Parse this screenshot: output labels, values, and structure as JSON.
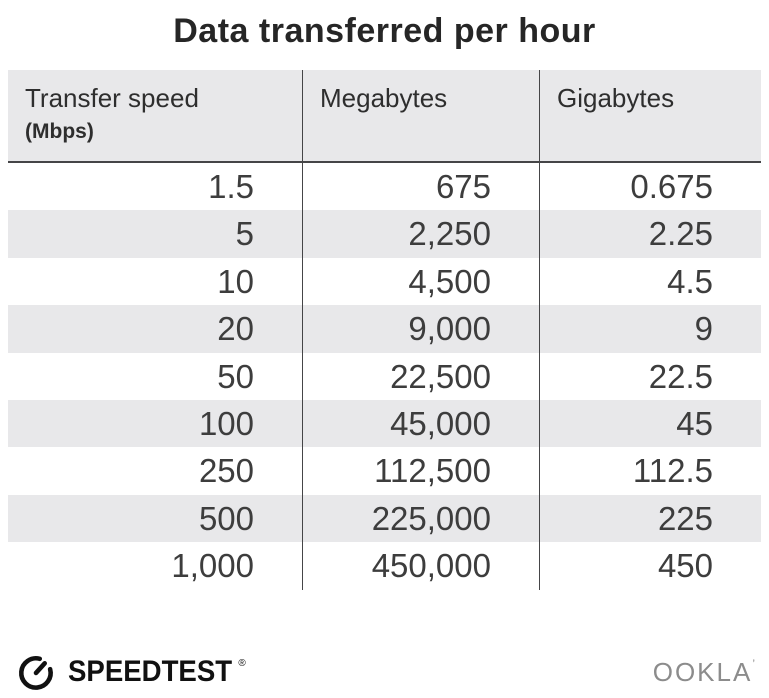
{
  "title": "Data transferred per hour",
  "table": {
    "headers": [
      "Transfer speed",
      "Megabytes",
      "Gigabytes"
    ],
    "header_unit": "(Mbps)",
    "rows": [
      [
        "1.5",
        "675",
        "0.675"
      ],
      [
        "5",
        "2,250",
        "2.25"
      ],
      [
        "10",
        "4,500",
        "4.5"
      ],
      [
        "20",
        "9,000",
        "9"
      ],
      [
        "50",
        "22,500",
        "22.5"
      ],
      [
        "100",
        "45,000",
        "45"
      ],
      [
        "250",
        "112,500",
        "112.5"
      ],
      [
        "500",
        "225,000",
        "225"
      ],
      [
        "1,000",
        "450,000",
        "450"
      ]
    ]
  },
  "chart_data": {
    "type": "table",
    "title": "Data transferred per hour",
    "columns": [
      "Transfer speed (Mbps)",
      "Megabytes",
      "Gigabytes"
    ],
    "rows": [
      [
        1.5,
        675,
        0.675
      ],
      [
        5,
        2250,
        2.25
      ],
      [
        10,
        4500,
        4.5
      ],
      [
        20,
        9000,
        9
      ],
      [
        50,
        22500,
        22.5
      ],
      [
        100,
        45000,
        45
      ],
      [
        250,
        112500,
        112.5
      ],
      [
        500,
        225000,
        225
      ],
      [
        1000,
        450000,
        450
      ]
    ],
    "layout": {
      "header_background": "#e8e8ea",
      "zebra_striping": true,
      "value_alignment": "right"
    }
  },
  "footer": {
    "speedtest_label": "SPEEDTEST",
    "speedtest_trademark": "®",
    "ookla_label": "OOKLA",
    "ookla_trademark": "’"
  },
  "colors": {
    "header_bg": "#e8e8ea",
    "row_alt_bg": "#e8e8ea",
    "divider": "#454547",
    "title_text": "#262626",
    "number_text": "#3d3d3d",
    "logo_black": "#111111",
    "ookla_gray": "#8c8c8c"
  }
}
